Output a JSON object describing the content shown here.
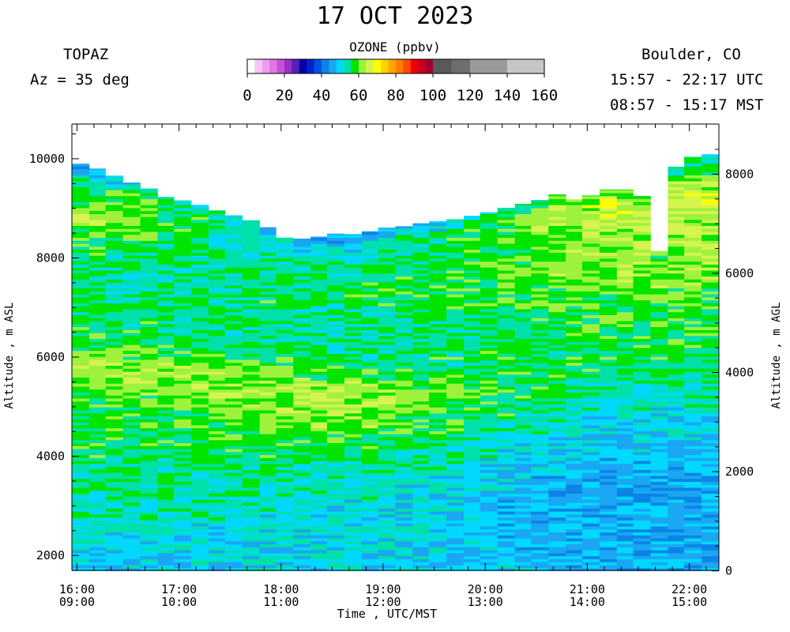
{
  "header": {
    "title": "17 OCT 2023",
    "instrument": "TOPAZ",
    "azimuth": "Az =  35 deg",
    "location": "Boulder, CO",
    "utc_range": "15:57 - 22:17 UTC",
    "mst_range": "08:57 - 15:17 MST"
  },
  "colorbar": {
    "title": "OZONE (ppbv)",
    "tick_labels": [
      "0",
      "20",
      "40",
      "60",
      "80",
      "100",
      "120",
      "140",
      "160"
    ],
    "tick_values": [
      0,
      20,
      40,
      60,
      80,
      100,
      120,
      140,
      160
    ],
    "bins": [
      {
        "lo": 0,
        "hi": 4,
        "color": "#ffffff"
      },
      {
        "lo": 4,
        "hi": 8,
        "color": "#f6c6f6"
      },
      {
        "lo": 8,
        "hi": 12,
        "color": "#ef9eef"
      },
      {
        "lo": 12,
        "hi": 16,
        "color": "#e276e6"
      },
      {
        "lo": 16,
        "hi": 20,
        "color": "#c850d8"
      },
      {
        "lo": 20,
        "hi": 24,
        "color": "#9a30c8"
      },
      {
        "lo": 24,
        "hi": 28,
        "color": "#5820b8"
      },
      {
        "lo": 28,
        "hi": 32,
        "color": "#0000a6"
      },
      {
        "lo": 32,
        "hi": 36,
        "color": "#0020d0"
      },
      {
        "lo": 36,
        "hi": 40,
        "color": "#0050e0"
      },
      {
        "lo": 40,
        "hi": 44,
        "color": "#0b84e6"
      },
      {
        "lo": 44,
        "hi": 48,
        "color": "#1aa6f2"
      },
      {
        "lo": 48,
        "hi": 52,
        "color": "#00d8ff"
      },
      {
        "lo": 52,
        "hi": 56,
        "color": "#00e0aa"
      },
      {
        "lo": 56,
        "hi": 60,
        "color": "#00e400"
      },
      {
        "lo": 60,
        "hi": 64,
        "color": "#9ef23c"
      },
      {
        "lo": 64,
        "hi": 68,
        "color": "#d6f44e"
      },
      {
        "lo": 68,
        "hi": 72,
        "color": "#ffff00"
      },
      {
        "lo": 72,
        "hi": 76,
        "color": "#ffd200"
      },
      {
        "lo": 76,
        "hi": 80,
        "color": "#ffa500"
      },
      {
        "lo": 80,
        "hi": 84,
        "color": "#ff7d00"
      },
      {
        "lo": 84,
        "hi": 88,
        "color": "#ff4a00"
      },
      {
        "lo": 88,
        "hi": 92,
        "color": "#f00000"
      },
      {
        "lo": 92,
        "hi": 96,
        "color": "#c8001e"
      },
      {
        "lo": 96,
        "hi": 100,
        "color": "#a0002d"
      },
      {
        "lo": 100,
        "hi": 110,
        "color": "#5a5a5a"
      },
      {
        "lo": 110,
        "hi": 120,
        "color": "#6e6e6e"
      },
      {
        "lo": 120,
        "hi": 140,
        "color": "#9a9a9a"
      },
      {
        "lo": 140,
        "hi": 160,
        "color": "#c6c6c6"
      }
    ]
  },
  "chart_data": {
    "type": "heatmap",
    "xlabel": "Time , UTC/MST",
    "ylabel_left": "Altitude , m ASL",
    "ylabel_right": "Altitude , m AGL",
    "x_ticks_utc": [
      "16:00",
      "17:00",
      "18:00",
      "19:00",
      "20:00",
      "21:00",
      "22:00"
    ],
    "x_ticks_mst": [
      "09:00",
      "10:00",
      "11:00",
      "12:00",
      "13:00",
      "14:00",
      "15:00"
    ],
    "x_tick_hours_utc": [
      16,
      17,
      18,
      19,
      20,
      21,
      22
    ],
    "xlim_hours_utc": [
      15.95,
      22.29
    ],
    "y_left_ticks": [
      2000,
      4000,
      6000,
      8000,
      10000
    ],
    "y_left_labels": [
      "2000",
      "4000",
      "6000",
      "8000",
      "10000"
    ],
    "ylim_asl_m": [
      1700,
      10700
    ],
    "y_right_ticks": [
      0,
      2000,
      4000,
      6000,
      8000
    ],
    "y_right_labels": [
      "0",
      "2000",
      "4000",
      "6000",
      "8000"
    ],
    "surface_asl_m": 1690,
    "time_columns_start_hours_utc": [
      15.95,
      16.12,
      16.28,
      16.45,
      16.62,
      16.79,
      16.95,
      17.12,
      17.29,
      17.45,
      17.62,
      17.79,
      17.95,
      18.12,
      18.29,
      18.45,
      18.62,
      18.79,
      18.95,
      19.12,
      19.29,
      19.45,
      19.62,
      19.79,
      19.95,
      20.12,
      20.29,
      20.45,
      20.62,
      20.79,
      20.95,
      21.12,
      21.29,
      21.45,
      21.62,
      21.79,
      21.95,
      22.12
    ],
    "column_top_asl_m": [
      9900,
      9800,
      9660,
      9520,
      9400,
      9230,
      9160,
      9070,
      8960,
      8860,
      8760,
      8620,
      8410,
      8390,
      8430,
      8490,
      8480,
      8540,
      8610,
      8640,
      8700,
      8740,
      8780,
      8850,
      8920,
      9010,
      9090,
      9170,
      9280,
      9180,
      9260,
      9380,
      9380,
      9250,
      8140,
      9840,
      10040,
      10090
    ],
    "altitude_levels_asl_m": [
      1750,
      2000,
      2250,
      2500,
      2750,
      3000,
      3250,
      3500,
      3750,
      4000,
      4250,
      4500,
      4750,
      5000,
      5250,
      5500,
      5750,
      6000,
      6250,
      6500,
      6750,
      7000,
      7250,
      7500,
      7750,
      8000,
      8250,
      8500,
      8750,
      9000,
      9250,
      9500,
      9750,
      10000
    ],
    "ozone_profile_points_ppbv": {
      "early_morning_16-17_UTC": [
        [
          1750,
          49
        ],
        [
          2250,
          50
        ],
        [
          2750,
          53
        ],
        [
          3250,
          54
        ],
        [
          3750,
          55
        ],
        [
          4250,
          57
        ],
        [
          4750,
          56
        ],
        [
          5250,
          60
        ],
        [
          5750,
          63
        ],
        [
          6250,
          57
        ],
        [
          6750,
          56
        ],
        [
          7250,
          55
        ],
        [
          7750,
          55
        ],
        [
          8250,
          57
        ],
        [
          8750,
          62
        ],
        [
          9250,
          59
        ],
        [
          9750,
          50
        ]
      ],
      "midday_18-19_UTC": [
        [
          1750,
          50
        ],
        [
          2250,
          51
        ],
        [
          2750,
          51
        ],
        [
          3250,
          53
        ],
        [
          3750,
          55
        ],
        [
          4250,
          58
        ],
        [
          4750,
          62
        ],
        [
          5250,
          64
        ],
        [
          5750,
          57
        ],
        [
          6250,
          54
        ],
        [
          6750,
          53
        ],
        [
          7250,
          57
        ],
        [
          7750,
          54
        ],
        [
          8250,
          50
        ]
      ],
      "afternoon_20-22_UTC": [
        [
          1750,
          47
        ],
        [
          2250,
          46
        ],
        [
          2750,
          46
        ],
        [
          3250,
          45
        ],
        [
          3750,
          47
        ],
        [
          4250,
          49
        ],
        [
          4750,
          51
        ],
        [
          5250,
          53
        ],
        [
          5750,
          56
        ],
        [
          6250,
          57
        ],
        [
          6750,
          58
        ],
        [
          7250,
          59
        ],
        [
          7750,
          62
        ],
        [
          8250,
          63
        ],
        [
          8750,
          64
        ],
        [
          9250,
          66
        ],
        [
          9750,
          58
        ]
      ]
    }
  }
}
